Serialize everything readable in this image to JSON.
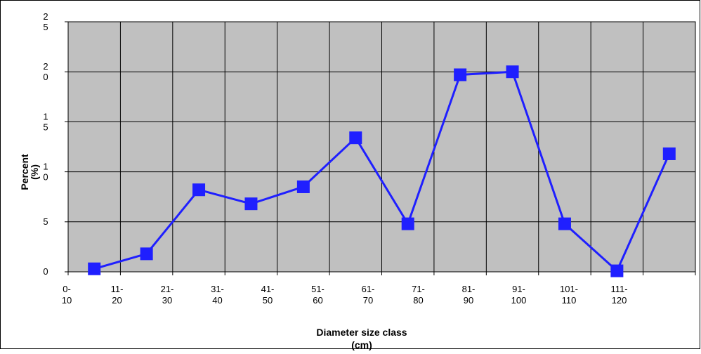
{
  "chart_data": {
    "type": "line",
    "x_label": "Diameter size class (cm)",
    "y_label": "Percent (%)",
    "categories": [
      "0-10",
      "11-20",
      "21-30",
      "31-40",
      "41-50",
      "51-60",
      "61-70",
      "71-80",
      "81-90",
      "91-100",
      "101-110",
      "111-120"
    ],
    "series": [
      {
        "name": "Percent",
        "color": "#1f1fff",
        "values": [
          0.3,
          1.8,
          8.2,
          6.8,
          8.5,
          13.4,
          4.8,
          19.7,
          20.0,
          4.8,
          0.1,
          11.8
        ]
      }
    ],
    "ylim": [
      0,
      25
    ],
    "yticks": [
      0,
      5,
      10,
      15,
      20,
      25
    ],
    "grid": true,
    "legend": false
  }
}
